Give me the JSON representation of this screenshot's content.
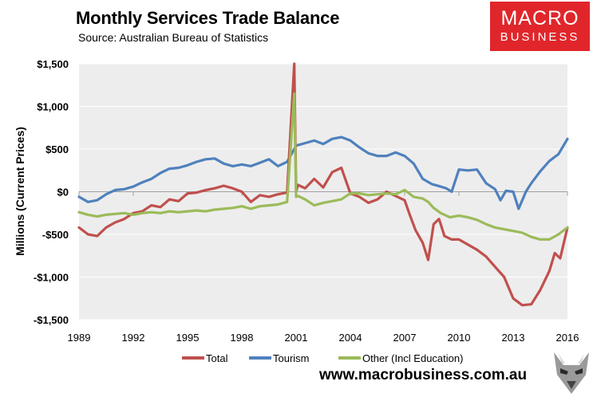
{
  "header": {
    "title": "Monthly Services Trade Balance",
    "source": "Source: Australian Bureau of Statistics"
  },
  "logo": {
    "line1": "MACRO",
    "line2": "BUSINESS"
  },
  "footer": {
    "url": "www.macrobusiness.com.au"
  },
  "colors": {
    "total": "#c0504d",
    "tourism": "#4f81bd",
    "other": "#9bbb59",
    "plot_bg": "#ededed",
    "gridline": "#ffffff",
    "logo_bg": "#e0262b"
  },
  "chart_data": {
    "type": "line",
    "title": "Monthly Services Trade Balance",
    "subtitle": "Source: Australian Bureau of Statistics",
    "xlabel": "",
    "ylabel": "Millions (Current Prices)",
    "xlim": [
      1989,
      2016
    ],
    "ylim": [
      -1500,
      1500
    ],
    "x_ticks": [
      1989,
      1992,
      1995,
      1998,
      2001,
      2004,
      2007,
      2010,
      2013,
      2016
    ],
    "x_tick_labels": [
      "1989",
      "1992",
      "1995",
      "1998",
      "2001",
      "2004",
      "2007",
      "2010",
      "2013",
      "2016"
    ],
    "y_ticks": [
      1500,
      1000,
      500,
      0,
      -500,
      -1000,
      -1500
    ],
    "y_tick_labels": [
      "$1,500",
      "$1,000",
      "$500",
      "$0",
      "-$500",
      "-$1,000",
      "-$1,500"
    ],
    "grid": true,
    "legend_position": "bottom",
    "series": [
      {
        "name": "Total",
        "x": [
          1989.0,
          1989.5,
          1990.0,
          1990.5,
          1991.0,
          1991.5,
          1992.0,
          1992.5,
          1993.0,
          1993.5,
          1994.0,
          1994.5,
          1995.0,
          1995.5,
          1996.0,
          1996.5,
          1997.0,
          1997.5,
          1998.0,
          1998.5,
          1999.0,
          1999.5,
          2000.0,
          2000.5,
          2000.9,
          2001.0,
          2001.1,
          2001.5,
          2002.0,
          2002.5,
          2003.0,
          2003.5,
          2004.0,
          2004.5,
          2005.0,
          2005.5,
          2006.0,
          2006.5,
          2007.0,
          2007.3,
          2007.6,
          2008.0,
          2008.3,
          2008.6,
          2008.9,
          2009.2,
          2009.6,
          2010.0,
          2010.5,
          2011.0,
          2011.5,
          2012.0,
          2012.5,
          2013.0,
          2013.5,
          2014.0,
          2014.5,
          2015.0,
          2015.3,
          2015.6,
          2016.0
        ],
        "values": [
          -420,
          -500,
          -520,
          -420,
          -360,
          -320,
          -250,
          -230,
          -160,
          -180,
          -90,
          -110,
          -20,
          -10,
          20,
          40,
          70,
          40,
          0,
          -120,
          -40,
          -60,
          -30,
          -10,
          1500,
          0,
          80,
          40,
          150,
          50,
          230,
          280,
          -20,
          -60,
          -130,
          -90,
          0,
          -50,
          -100,
          -280,
          -450,
          -600,
          -800,
          -380,
          -320,
          -520,
          -560,
          -560,
          -620,
          -680,
          -760,
          -880,
          -1000,
          -1250,
          -1330,
          -1320,
          -1150,
          -930,
          -720,
          -780,
          -420
        ]
      },
      {
        "name": "Tourism",
        "x": [
          1989.0,
          1989.5,
          1990.0,
          1990.5,
          1991.0,
          1991.5,
          1992.0,
          1992.5,
          1993.0,
          1993.5,
          1994.0,
          1994.5,
          1995.0,
          1995.5,
          1996.0,
          1996.5,
          1997.0,
          1997.5,
          1998.0,
          1998.5,
          1999.0,
          1999.5,
          2000.0,
          2000.5,
          2001.0,
          2001.5,
          2002.0,
          2002.5,
          2003.0,
          2003.5,
          2004.0,
          2004.5,
          2005.0,
          2005.5,
          2006.0,
          2006.5,
          2007.0,
          2007.5,
          2008.0,
          2008.5,
          2009.0,
          2009.3,
          2009.6,
          2010.0,
          2010.5,
          2011.0,
          2011.5,
          2012.0,
          2012.3,
          2012.6,
          2013.0,
          2013.3,
          2013.7,
          2014.0,
          2014.5,
          2015.0,
          2015.5,
          2016.0
        ],
        "values": [
          -60,
          -120,
          -100,
          -30,
          20,
          30,
          60,
          110,
          150,
          220,
          270,
          280,
          310,
          350,
          380,
          390,
          330,
          300,
          320,
          300,
          340,
          380,
          300,
          350,
          540,
          570,
          600,
          560,
          620,
          640,
          600,
          520,
          450,
          420,
          420,
          460,
          420,
          330,
          150,
          90,
          60,
          40,
          0,
          260,
          250,
          260,
          100,
          30,
          -100,
          10,
          0,
          -200,
          0,
          100,
          240,
          360,
          440,
          620
        ]
      },
      {
        "name": "Other (Incl Education)",
        "x": [
          1989.0,
          1989.5,
          1990.0,
          1990.5,
          1991.0,
          1991.5,
          1992.0,
          1992.5,
          1993.0,
          1993.5,
          1994.0,
          1994.5,
          1995.0,
          1995.5,
          1996.0,
          1996.5,
          1997.0,
          1997.5,
          1998.0,
          1998.5,
          1999.0,
          1999.5,
          2000.0,
          2000.5,
          2000.9,
          2001.0,
          2001.1,
          2001.5,
          2002.0,
          2002.5,
          2003.0,
          2003.5,
          2004.0,
          2004.5,
          2005.0,
          2005.5,
          2006.0,
          2006.5,
          2007.0,
          2007.5,
          2008.0,
          2008.3,
          2008.6,
          2009.0,
          2009.5,
          2010.0,
          2010.5,
          2011.0,
          2011.5,
          2012.0,
          2012.5,
          2013.0,
          2013.5,
          2014.0,
          2014.5,
          2015.0,
          2015.5,
          2016.0
        ],
        "values": [
          -240,
          -270,
          -290,
          -270,
          -260,
          -250,
          -270,
          -250,
          -240,
          -250,
          -230,
          -240,
          -230,
          -220,
          -230,
          -210,
          -200,
          -190,
          -170,
          -200,
          -170,
          -160,
          -150,
          -120,
          1150,
          -60,
          -50,
          -90,
          -160,
          -130,
          -110,
          -90,
          -20,
          -20,
          -40,
          -30,
          -20,
          -30,
          20,
          -60,
          -80,
          -120,
          -190,
          -250,
          -300,
          -280,
          -300,
          -330,
          -380,
          -420,
          -440,
          -460,
          -480,
          -530,
          -560,
          -560,
          -500,
          -420
        ]
      }
    ]
  }
}
